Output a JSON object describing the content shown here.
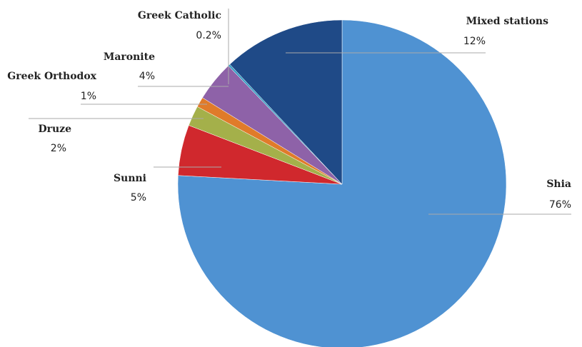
{
  "chart_data": {
    "type": "pie",
    "categories": [
      "Shia",
      "Sunni",
      "Druze",
      "Greek Orthodox",
      "Maronite",
      "Greek Catholic",
      "Mixed stations"
    ],
    "values": [
      76,
      5,
      2,
      1,
      4,
      0.2,
      12
    ],
    "value_labels": [
      "76%",
      "5%",
      "2%",
      "1%",
      "4%",
      "0.2%",
      "12%"
    ],
    "colors": [
      "#4f92d2",
      "#d0282d",
      "#a4b04a",
      "#e07b2a",
      "#8e62a8",
      "#3b9ec4",
      "#1f4a87"
    ]
  }
}
